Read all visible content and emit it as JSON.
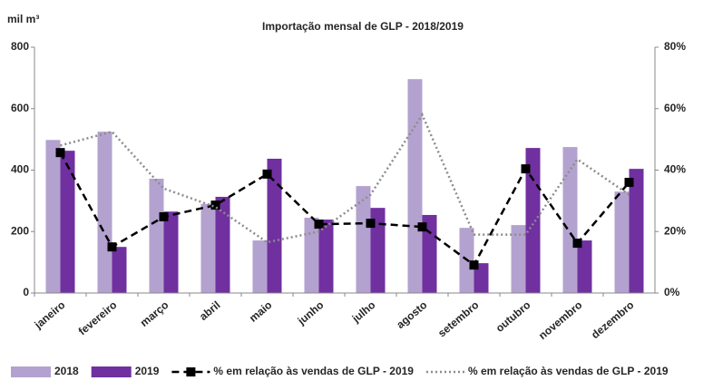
{
  "chart_data": {
    "type": "bar-line",
    "title": "Importação mensal de GLP - 2018/2019",
    "y_label": "mil m³",
    "categories": [
      "janeiro",
      "fevereiro",
      "março",
      "abril",
      "maio",
      "junho",
      "julho",
      "agosto",
      "setembro",
      "outubro",
      "novembro",
      "dezembro"
    ],
    "series": [
      {
        "name": "2018",
        "type": "bar",
        "color": "#b3a2cf",
        "values": [
          498,
          525,
          372,
          290,
          171,
          245,
          348,
          696,
          212,
          221,
          475,
          330
        ]
      },
      {
        "name": "2019",
        "type": "bar",
        "color": "#7030a0",
        "values": [
          463,
          150,
          265,
          313,
          437,
          239,
          277,
          254,
          97,
          472,
          171,
          404
        ]
      },
      {
        "name": "% em relação às vendas de GLP - 2019",
        "type": "line",
        "axis": "y2",
        "color": "#000000",
        "dash": "dashed",
        "marker": true,
        "values": [
          45.7,
          15,
          24.8,
          28.6,
          38.7,
          22.4,
          22.7,
          21.5,
          9.1,
          40.4,
          16.2,
          36
        ]
      },
      {
        "name": "% em relação às vendas de GLP - 2019",
        "type": "line",
        "axis": "y2",
        "color": "#8c8c8c",
        "dash": "dotted",
        "marker": false,
        "values": [
          48,
          52.5,
          34,
          28,
          16.5,
          20,
          32,
          58,
          19,
          19,
          43.5,
          32
        ]
      }
    ],
    "ylim": [
      0,
      800
    ],
    "yticks": [
      0,
      200,
      400,
      600,
      800
    ],
    "y2lim": [
      0,
      80
    ],
    "y2ticks": [
      {
        "value": 0,
        "label": "0%"
      },
      {
        "value": 20,
        "label": "20%"
      },
      {
        "value": 40,
        "label": "40%"
      },
      {
        "value": 60,
        "label": "60%"
      },
      {
        "value": 80,
        "label": "80%"
      }
    ],
    "grid": false,
    "legend": "bottom"
  }
}
